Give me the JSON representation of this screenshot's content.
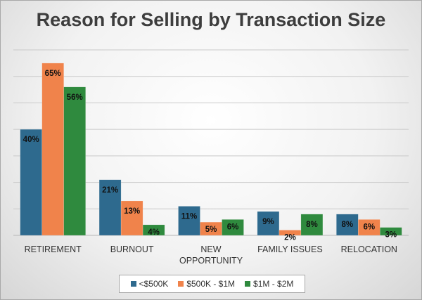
{
  "chart_data": {
    "type": "bar",
    "title": "Reason for Selling by Transaction Size",
    "categories": [
      [
        "RETIREMENT"
      ],
      [
        "BURNOUT"
      ],
      [
        "NEW",
        "OPPORTUNITY"
      ],
      [
        "FAMILY ISSUES"
      ],
      [
        "RELOCATION"
      ]
    ],
    "series": [
      {
        "name": "<$500K",
        "color": "#2e6a8e",
        "values": [
          40,
          21,
          11,
          9,
          8
        ]
      },
      {
        "name": "$500K - $1M",
        "color": "#f0834b",
        "values": [
          65,
          13,
          5,
          2,
          6
        ]
      },
      {
        "name": "$1M - $2M",
        "color": "#2f8a3e",
        "values": [
          56,
          4,
          6,
          8,
          3
        ]
      }
    ],
    "value_suffix": "%",
    "ylim": [
      0,
      70
    ],
    "gridlines_every": 10,
    "grid": true,
    "legend_position": "bottom"
  }
}
